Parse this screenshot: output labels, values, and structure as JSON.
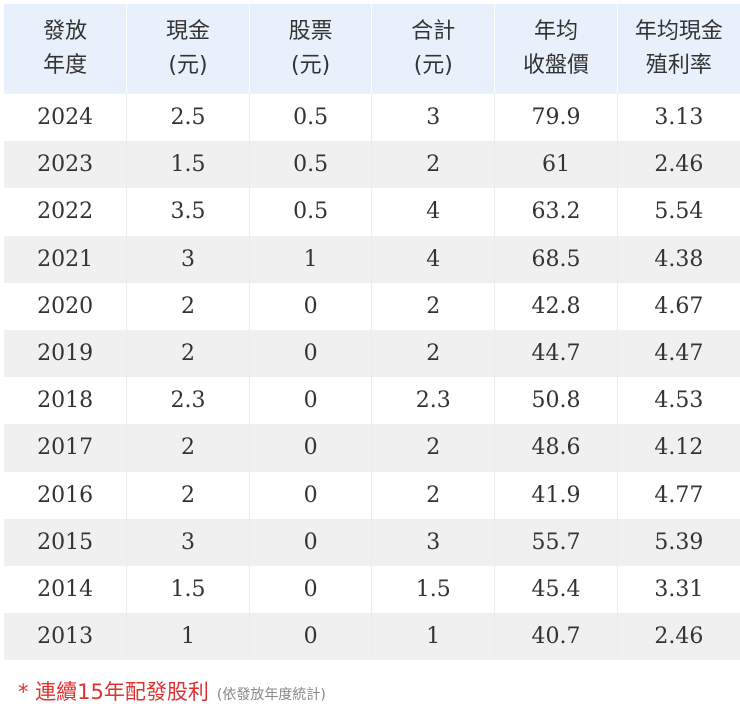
{
  "chart_data": {
    "type": "table",
    "columns": [
      {
        "line1": "發放",
        "line2": "年度"
      },
      {
        "line1": "現金",
        "line2": "(元)"
      },
      {
        "line1": "股票",
        "line2": "(元)"
      },
      {
        "line1": "合計",
        "line2": "(元)"
      },
      {
        "line1": "年均",
        "line2": "收盤價"
      },
      {
        "line1": "年均現金",
        "line2": "殖利率"
      }
    ],
    "rows": [
      [
        "2024",
        "2.5",
        "0.5",
        "3",
        "79.9",
        "3.13"
      ],
      [
        "2023",
        "1.5",
        "0.5",
        "2",
        "61",
        "2.46"
      ],
      [
        "2022",
        "3.5",
        "0.5",
        "4",
        "63.2",
        "5.54"
      ],
      [
        "2021",
        "3",
        "1",
        "4",
        "68.5",
        "4.38"
      ],
      [
        "2020",
        "2",
        "0",
        "2",
        "42.8",
        "4.67"
      ],
      [
        "2019",
        "2",
        "0",
        "2",
        "44.7",
        "4.47"
      ],
      [
        "2018",
        "2.3",
        "0",
        "2.3",
        "50.8",
        "4.53"
      ],
      [
        "2017",
        "2",
        "0",
        "2",
        "48.6",
        "4.12"
      ],
      [
        "2016",
        "2",
        "0",
        "2",
        "41.9",
        "4.77"
      ],
      [
        "2015",
        "3",
        "0",
        "3",
        "55.7",
        "5.39"
      ],
      [
        "2014",
        "1.5",
        "0",
        "1.5",
        "45.4",
        "3.31"
      ],
      [
        "2013",
        "1",
        "0",
        "1",
        "40.7",
        "2.46"
      ]
    ]
  },
  "footnote": {
    "main": "* 連續15年配發股利",
    "sub": "(依發放年度統計)"
  },
  "colors": {
    "header_bg": "#e8f1fb",
    "stripe_bg": "#f0f0f0",
    "accent_red": "#e03131"
  }
}
